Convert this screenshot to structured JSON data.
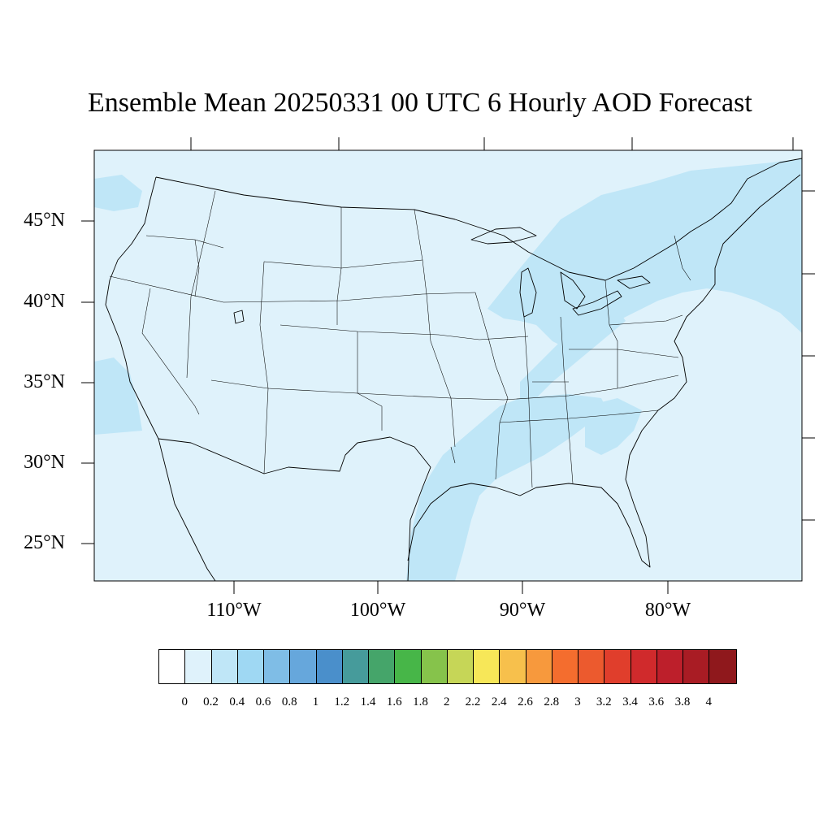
{
  "title": "Ensemble Mean 20250331 00 UTC 6 Hourly AOD Forecast",
  "lat_labels": [
    "45°N",
    "40°N",
    "35°N",
    "30°N",
    "25°N"
  ],
  "lon_labels": [
    "110°W",
    "100°W",
    "90°W",
    "80°W"
  ],
  "map": {
    "background_color": "#dff2fb",
    "plume_color": "#bfe6f7",
    "outline_color": "#000000"
  },
  "colorbar": {
    "colors": [
      "#ffffff",
      "#dff2fb",
      "#bfe6f7",
      "#9fd8f3",
      "#7fbde6",
      "#66a7dc",
      "#4a8fcb",
      "#469b9b",
      "#45a56a",
      "#47b648",
      "#86c34b",
      "#c6d657",
      "#f7e758",
      "#f7c04c",
      "#f7993d",
      "#f46d2e",
      "#ec5a2e",
      "#e03e2c",
      "#d02a2c",
      "#bd1f2b",
      "#a91c24",
      "#8f181c"
    ],
    "labels": [
      "0",
      "0.2",
      "0.4",
      "0.6",
      "0.8",
      "1",
      "1.2",
      "1.4",
      "1.6",
      "1.8",
      "2",
      "2.2",
      "2.4",
      "2.6",
      "2.8",
      "3",
      "3.2",
      "3.4",
      "3.6",
      "3.8",
      "4"
    ]
  }
}
